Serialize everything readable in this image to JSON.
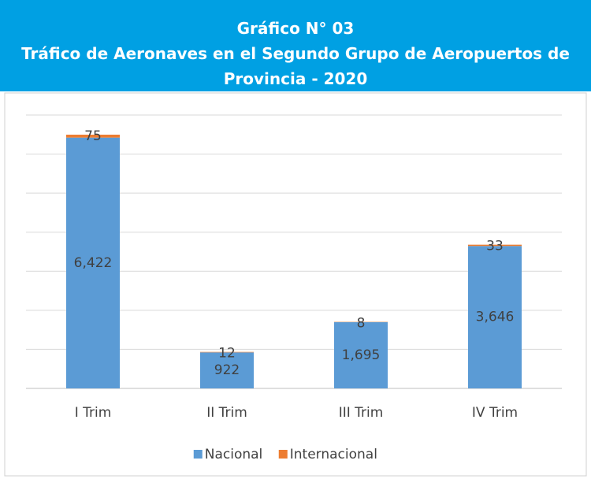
{
  "chart_data": {
    "type": "stacked_bar",
    "title": "Gráfico N° 03",
    "subtitle": "Tráfico de Aeronaves en el Segundo Grupo de Aeropuertos de Provincia - 2020",
    "categories": [
      "I Trim",
      "II Trim",
      "III Trim",
      "IV Trim"
    ],
    "series": [
      {
        "name": "Nacional",
        "color": "#5b9bd5",
        "values": [
          6422,
          922,
          1695,
          3646
        ],
        "value_labels": [
          "6,422",
          "922",
          "1,695",
          "3,646"
        ]
      },
      {
        "name": "Internacional",
        "color": "#ed7d31",
        "values": [
          75,
          12,
          8,
          33
        ]
      }
    ],
    "ylim": [
      0,
      7000
    ],
    "yticks": [
      0,
      1000,
      2000,
      3000,
      4000,
      5000,
      6000,
      7000
    ],
    "grid": true,
    "legend": "bottom"
  }
}
